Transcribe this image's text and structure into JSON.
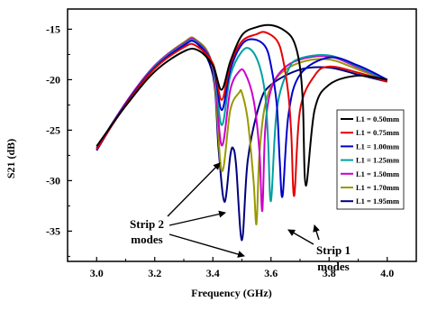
{
  "chart_data": {
    "type": "line",
    "xlabel": "Frequency (GHz)",
    "ylabel": "S21 (dB)",
    "xlim": [
      2.9,
      4.1
    ],
    "ylim": [
      -38,
      -13
    ],
    "xticks": [
      3.0,
      3.2,
      3.4,
      3.6,
      3.8,
      4.0
    ],
    "xtick_labels": [
      "3.0",
      "3.2",
      "3.4",
      "3.6",
      "3.8",
      "4.0"
    ],
    "yticks": [
      -15,
      -20,
      -25,
      -30,
      -35
    ],
    "ytick_labels": [
      "-15",
      "-20",
      "-25",
      "-30",
      "-35"
    ],
    "grid": false,
    "legend_position": "center-right",
    "series": [
      {
        "name": "L1 = 0.50mm",
        "color": "#000000",
        "x": [
          3.0,
          3.1,
          3.2,
          3.3,
          3.35,
          3.4,
          3.43,
          3.46,
          3.5,
          3.55,
          3.6,
          3.65,
          3.68,
          3.7,
          3.71,
          3.72,
          3.75,
          3.8,
          3.9,
          4.0
        ],
        "y": [
          -26.6,
          -22.6,
          -19.2,
          -17.2,
          -17.1,
          -18.6,
          -21.0,
          -18.2,
          -15.6,
          -14.8,
          -14.6,
          -15.2,
          -16.3,
          -18.8,
          -22.5,
          -30.5,
          -23.0,
          -20.5,
          -19.6,
          -20.0
        ]
      },
      {
        "name": "L1 = 0.75mm",
        "color": "#e60000",
        "x": [
          3.0,
          3.1,
          3.2,
          3.3,
          3.34,
          3.4,
          3.43,
          3.46,
          3.5,
          3.55,
          3.58,
          3.62,
          3.64,
          3.66,
          3.67,
          3.68,
          3.7,
          3.75,
          3.8,
          3.9,
          4.0
        ],
        "y": [
          -26.9,
          -22.5,
          -18.9,
          -16.8,
          -16.6,
          -18.4,
          -22.0,
          -18.5,
          -16.2,
          -15.5,
          -15.3,
          -16.1,
          -17.8,
          -21.5,
          -25.5,
          -31.5,
          -23.0,
          -19.6,
          -18.7,
          -19.3,
          -20.2
        ]
      },
      {
        "name": "L1 = 1.00mm",
        "color": "#0000cc",
        "x": [
          3.0,
          3.1,
          3.2,
          3.3,
          3.34,
          3.4,
          3.43,
          3.46,
          3.5,
          3.54,
          3.58,
          3.6,
          3.62,
          3.63,
          3.64,
          3.66,
          3.7,
          3.8,
          3.9,
          4.0
        ],
        "y": [
          -27.0,
          -22.4,
          -18.8,
          -16.6,
          -16.3,
          -18.5,
          -23.0,
          -19.0,
          -16.5,
          -16.0,
          -16.7,
          -18.6,
          -22.5,
          -28.0,
          -31.5,
          -23.5,
          -19.5,
          -17.8,
          -18.6,
          -20.0
        ]
      },
      {
        "name": "L1 = 1.25mm",
        "color": "#00a0a0",
        "x": [
          3.0,
          3.1,
          3.2,
          3.3,
          3.34,
          3.4,
          3.43,
          3.46,
          3.5,
          3.53,
          3.56,
          3.58,
          3.59,
          3.6,
          3.62,
          3.66,
          3.7,
          3.8,
          3.9,
          4.0
        ],
        "y": [
          -27.0,
          -22.4,
          -18.7,
          -16.5,
          -16.2,
          -18.6,
          -24.5,
          -19.6,
          -17.2,
          -17.0,
          -18.6,
          -21.5,
          -26.0,
          -32.0,
          -23.0,
          -19.0,
          -17.9,
          -17.6,
          -18.7,
          -20.1
        ]
      },
      {
        "name": "L1 = 1.50mm",
        "color": "#cc00cc",
        "x": [
          3.0,
          3.1,
          3.2,
          3.3,
          3.34,
          3.4,
          3.43,
          3.46,
          3.49,
          3.51,
          3.54,
          3.56,
          3.57,
          3.58,
          3.6,
          3.64,
          3.7,
          3.8,
          3.9,
          4.0
        ],
        "y": [
          -27.0,
          -22.3,
          -18.6,
          -16.4,
          -16.1,
          -18.7,
          -26.5,
          -21.0,
          -19.2,
          -19.3,
          -22.0,
          -27.0,
          -33.0,
          -25.0,
          -21.0,
          -19.0,
          -18.0,
          -17.7,
          -18.8,
          -20.1
        ]
      },
      {
        "name": "L1 = 1.70mm",
        "color": "#999900",
        "x": [
          3.0,
          3.1,
          3.2,
          3.3,
          3.34,
          3.4,
          3.43,
          3.46,
          3.49,
          3.5,
          3.52,
          3.54,
          3.55,
          3.56,
          3.58,
          3.62,
          3.7,
          3.8,
          3.9,
          4.0
        ],
        "y": [
          -27.0,
          -22.3,
          -18.6,
          -16.3,
          -16.0,
          -18.8,
          -29.0,
          -23.0,
          -21.3,
          -21.3,
          -24.0,
          -30.0,
          -34.3,
          -27.5,
          -22.5,
          -19.8,
          -18.3,
          -18.0,
          -19.0,
          -20.1
        ]
      },
      {
        "name": "L1 = 1.95mm",
        "color": "#000080",
        "x": [
          3.0,
          3.1,
          3.2,
          3.3,
          3.34,
          3.4,
          3.42,
          3.44,
          3.46,
          3.47,
          3.48,
          3.5,
          3.52,
          3.56,
          3.6,
          3.7,
          3.8,
          3.9,
          4.0
        ],
        "y": [
          -26.8,
          -22.3,
          -18.7,
          -16.4,
          -16.2,
          -19.5,
          -27.0,
          -32.1,
          -27.5,
          -26.8,
          -28.5,
          -35.9,
          -28.0,
          -22.5,
          -20.5,
          -19.0,
          -18.8,
          -19.5,
          -20.2
        ]
      }
    ],
    "annotations": [
      {
        "text": "Strip 2",
        "text2": "modes"
      },
      {
        "text": "Strip 1",
        "text2": "modes"
      }
    ]
  }
}
